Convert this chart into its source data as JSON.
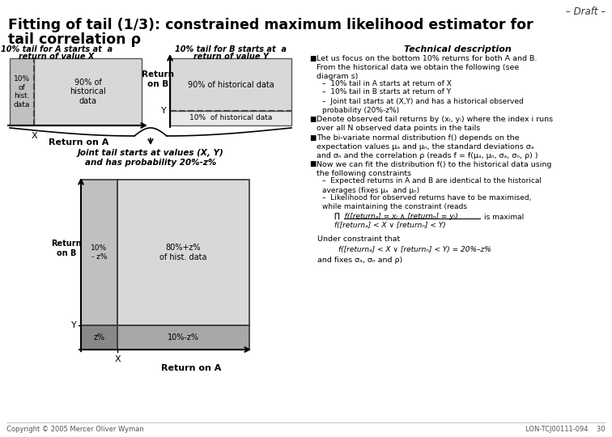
{
  "title_draft": "– Draft –",
  "title_main_line1": "Fitting of tail (1/3): constrained maximum likelihood estimator for",
  "title_main_line2": "tail correlation ρ",
  "bg_color": "#ffffff",
  "text_color": "#000000",
  "footer_left": "Copyright © 2005 Mercer Oliver Wyman",
  "footer_right": "LON-TCJ00111-094    30",
  "label_A_title_line1": "10% tail for A starts at  a",
  "label_A_title_line2": "return of value X",
  "label_B_title_line1": "10% tail for B starts at  a",
  "label_B_title_line2": "return of value Y",
  "tech_title": "Technical description",
  "box_light": "#d8d8d8",
  "box_mid": "#c0c0c0",
  "box_dark": "#a8a8a8",
  "box_darker": "#888888"
}
